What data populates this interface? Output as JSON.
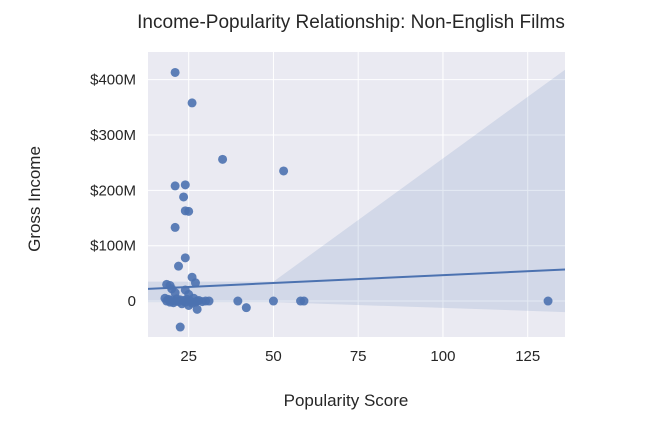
{
  "chart_data": {
    "type": "scatter",
    "title": "Income-Popularity Relationship: Non-English Films",
    "xlabel": "Popularity Score",
    "ylabel": "Gross Income",
    "xlim": [
      13,
      136
    ],
    "ylim": [
      -65,
      450
    ],
    "y_units": "$M",
    "grid": true,
    "x_ticks": [
      {
        "value": 25,
        "label": "25"
      },
      {
        "value": 50,
        "label": "50"
      },
      {
        "value": 75,
        "label": "75"
      },
      {
        "value": 100,
        "label": "100"
      },
      {
        "value": 125,
        "label": "125"
      }
    ],
    "y_ticks": [
      {
        "value": 0,
        "label": "0"
      },
      {
        "value": 100,
        "label": "$100M"
      },
      {
        "value": 200,
        "label": "$200M"
      },
      {
        "value": 300,
        "label": "$300M"
      },
      {
        "value": 400,
        "label": "$400M"
      }
    ],
    "points": [
      {
        "x": 21,
        "y": 413
      },
      {
        "x": 26,
        "y": 358
      },
      {
        "x": 35,
        "y": 256
      },
      {
        "x": 53,
        "y": 235
      },
      {
        "x": 21,
        "y": 208
      },
      {
        "x": 24,
        "y": 210
      },
      {
        "x": 23.5,
        "y": 188
      },
      {
        "x": 24,
        "y": 163
      },
      {
        "x": 25,
        "y": 162
      },
      {
        "x": 21,
        "y": 133
      },
      {
        "x": 24,
        "y": 78
      },
      {
        "x": 22,
        "y": 63
      },
      {
        "x": 26,
        "y": 43
      },
      {
        "x": 27,
        "y": 33
      },
      {
        "x": 18.5,
        "y": 30
      },
      {
        "x": 19.5,
        "y": 28
      },
      {
        "x": 20,
        "y": 22
      },
      {
        "x": 21,
        "y": 15
      },
      {
        "x": 24,
        "y": 20
      },
      {
        "x": 25,
        "y": 12
      },
      {
        "x": 18,
        "y": 5
      },
      {
        "x": 18.5,
        "y": 0
      },
      {
        "x": 19,
        "y": 3
      },
      {
        "x": 19.5,
        "y": -2
      },
      {
        "x": 20,
        "y": 2
      },
      {
        "x": 20.5,
        "y": -3
      },
      {
        "x": 21,
        "y": 0
      },
      {
        "x": 21.5,
        "y": 4
      },
      {
        "x": 22,
        "y": -1
      },
      {
        "x": 22.5,
        "y": 2
      },
      {
        "x": 23,
        "y": -5
      },
      {
        "x": 23.5,
        "y": 1
      },
      {
        "x": 24,
        "y": -2
      },
      {
        "x": 24.5,
        "y": 3
      },
      {
        "x": 25,
        "y": -8
      },
      {
        "x": 25.5,
        "y": 0
      },
      {
        "x": 26,
        "y": -4
      },
      {
        "x": 26.5,
        "y": 5
      },
      {
        "x": 27,
        "y": -2
      },
      {
        "x": 27.5,
        "y": 0
      },
      {
        "x": 28,
        "y": 1
      },
      {
        "x": 29,
        "y": -1
      },
      {
        "x": 30,
        "y": 0
      },
      {
        "x": 31,
        "y": 0
      },
      {
        "x": 27.5,
        "y": -15
      },
      {
        "x": 22.5,
        "y": -47
      },
      {
        "x": 39.5,
        "y": 0
      },
      {
        "x": 42,
        "y": -12
      },
      {
        "x": 50,
        "y": 0
      },
      {
        "x": 58,
        "y": 0
      },
      {
        "x": 59,
        "y": 0
      },
      {
        "x": 131,
        "y": 0
      }
    ],
    "regression": {
      "line": [
        [
          13,
          22
        ],
        [
          136,
          57
        ]
      ],
      "ci_upper": [
        [
          13,
          35
        ],
        [
          50,
          35
        ],
        [
          136,
          418
        ]
      ],
      "ci_lower": [
        [
          13,
          -2
        ],
        [
          50,
          -2
        ],
        [
          136,
          -20
        ]
      ]
    },
    "colors": {
      "background": "#eaeaf2",
      "grid": "#ffffff",
      "point": "#4c72b0",
      "line": "#4c72b0",
      "band": "#4c72b0"
    }
  }
}
